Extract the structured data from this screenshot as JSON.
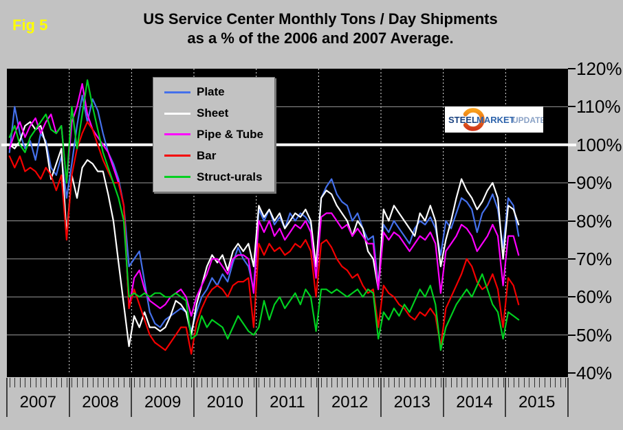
{
  "figure": {
    "fig_label": "Fig 5",
    "title_line1": "US Service Center Monthly Tons / Day Shipments",
    "title_line2": "as a % of the 2006 and 2007 Average."
  },
  "logo": {
    "steel": "STEEL",
    "market": "MARKET",
    "update": "UPDATE"
  },
  "colors": {
    "background": "#c2c2c2",
    "plot_background": "#000000",
    "gridline": "#9b9b9b",
    "year_dashed_line": "#ffffff",
    "baseline_100": "#ffffff",
    "fig_label": "#ffff00",
    "logo_steel": "#163f7e",
    "logo_market": "#2b62ab",
    "logo_update": "#8aa2c6",
    "logo_arc_top": "#f9a11b",
    "logo_arc_bottom": "#d23a1c"
  },
  "y_axis": {
    "tick_labels": [
      "120%",
      "110%",
      "100%",
      "90%",
      "80%",
      "70%",
      "60%",
      "50%",
      "40%"
    ],
    "min": 40,
    "max": 120,
    "step": 10
  },
  "x_axis": {
    "years": [
      "2007",
      "2008",
      "2009",
      "2010",
      "2011",
      "2012",
      "2013",
      "2014",
      "2015"
    ],
    "months_per_year": 12
  },
  "chart_data": {
    "type": "line",
    "title": "US Service Center Monthly Tons / Day Shipments as a % of the 2006 and 2007 Average.",
    "x_unit": "month",
    "x_start": "2007-01",
    "x_end": "2015-03",
    "ylim": [
      40,
      120
    ],
    "y_tick_step": 10,
    "y_format": "percent",
    "reference_line": 100,
    "grid": true,
    "legend_position": "top-left-inside",
    "series": [
      {
        "name": "Plate",
        "color": "#4470eb",
        "values": [
          98,
          110,
          103,
          99,
          101,
          96,
          103,
          101,
          94,
          92,
          97,
          86,
          95,
          105,
          113,
          106,
          112,
          109,
          103,
          98,
          95,
          91,
          84,
          68,
          70,
          72,
          64,
          56,
          53,
          52,
          54,
          55,
          56,
          57,
          56,
          51,
          56,
          60,
          62,
          65,
          63,
          66,
          64,
          69,
          73,
          70,
          68,
          62,
          83,
          80,
          83,
          79,
          81,
          78,
          82,
          80,
          82,
          81,
          79,
          68,
          86,
          89,
          91,
          87,
          85,
          84,
          80,
          82,
          78,
          75,
          76,
          63,
          79,
          77,
          80,
          78,
          76,
          74,
          78,
          80,
          79,
          81,
          78,
          71,
          80,
          78,
          82,
          86,
          85,
          83,
          77,
          82,
          84,
          87,
          83,
          73,
          86,
          84,
          76
        ]
      },
      {
        "name": "Sheet",
        "color": "#ffffff",
        "values": [
          100,
          99,
          101,
          105,
          106,
          104,
          105,
          100,
          91,
          95,
          99,
          76,
          92,
          86,
          94,
          96,
          95,
          93,
          93,
          87,
          80,
          69,
          58,
          47,
          55,
          52,
          56,
          52,
          52,
          51,
          52,
          55,
          59,
          58,
          56,
          50,
          58,
          63,
          68,
          71,
          69,
          71,
          67,
          72,
          74,
          72,
          74,
          68,
          84,
          81,
          83,
          80,
          82,
          78,
          80,
          82,
          81,
          83,
          80,
          68,
          86,
          88,
          87,
          84,
          82,
          80,
          76,
          80,
          78,
          72,
          70,
          62,
          83,
          80,
          84,
          82,
          80,
          78,
          76,
          82,
          80,
          84,
          80,
          68,
          75,
          80,
          86,
          91,
          88,
          86,
          83,
          85,
          88,
          90,
          86,
          70,
          84,
          83,
          79
        ]
      },
      {
        "name": "Pipe & Tube",
        "color": "#ff00ff",
        "values": [
          99,
          103,
          106,
          102,
          105,
          107,
          103,
          106,
          108,
          103,
          105,
          90,
          106,
          110,
          116,
          108,
          104,
          102,
          100,
          98,
          94,
          90,
          84,
          57,
          65,
          67,
          62,
          59,
          58,
          57,
          58,
          60,
          61,
          62,
          60,
          55,
          60,
          63,
          66,
          70,
          70,
          68,
          66,
          70,
          71,
          71,
          70,
          61,
          80,
          77,
          80,
          76,
          78,
          75,
          77,
          79,
          78,
          80,
          77,
          65,
          81,
          82,
          82,
          80,
          78,
          79,
          76,
          78,
          76,
          74,
          74,
          62,
          77,
          75,
          77,
          76,
          74,
          72,
          74,
          76,
          75,
          77,
          74,
          61,
          72,
          74,
          76,
          79,
          78,
          76,
          72,
          74,
          76,
          79,
          76,
          63,
          76,
          76,
          71
        ]
      },
      {
        "name": "Bar",
        "color": "#f40000",
        "values": [
          97,
          94,
          97,
          93,
          94,
          93,
          91,
          94,
          92,
          88,
          92,
          75,
          92,
          99,
          103,
          106,
          104,
          100,
          96,
          93,
          90,
          90,
          84,
          57,
          62,
          58,
          54,
          50,
          48,
          47,
          46,
          48,
          50,
          52,
          52,
          45,
          53,
          57,
          60,
          62,
          63,
          62,
          60,
          63,
          64,
          64,
          65,
          52,
          74,
          71,
          74,
          72,
          73,
          71,
          72,
          74,
          73,
          75,
          72,
          60,
          74,
          75,
          73,
          70,
          68,
          67,
          65,
          66,
          63,
          61,
          62,
          52,
          63,
          61,
          60,
          58,
          57,
          55,
          54,
          56,
          55,
          57,
          55,
          47,
          57,
          60,
          63,
          66,
          70,
          68,
          64,
          62,
          63,
          66,
          62,
          52,
          65,
          63,
          58
        ]
      },
      {
        "name": "Struct-urals",
        "color": "#00d020",
        "values": [
          102,
          105,
          100,
          98,
          102,
          104,
          106,
          108,
          104,
          103,
          105,
          90,
          110,
          99,
          108,
          117,
          110,
          104,
          98,
          94,
          90,
          86,
          80,
          60,
          61,
          60,
          61,
          60,
          61,
          61,
          60,
          60,
          61,
          60,
          59,
          49,
          50,
          55,
          52,
          54,
          53,
          52,
          49,
          52,
          55,
          53,
          51,
          50,
          52,
          59,
          54,
          58,
          60,
          57,
          59,
          61,
          58,
          62,
          60,
          51,
          62,
          62,
          61,
          62,
          61,
          60,
          61,
          62,
          60,
          62,
          61,
          49,
          56,
          54,
          57,
          55,
          58,
          56,
          59,
          62,
          60,
          63,
          58,
          46,
          52,
          55,
          58,
          60,
          62,
          60,
          63,
          66,
          62,
          58,
          56,
          49,
          56,
          55,
          54
        ]
      }
    ]
  }
}
